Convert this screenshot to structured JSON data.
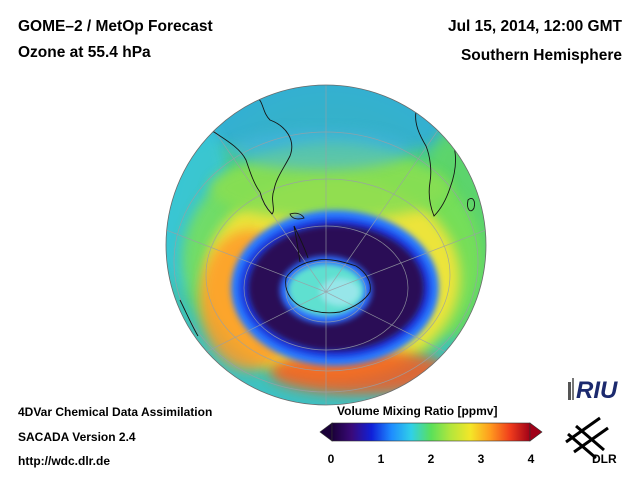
{
  "header": {
    "title_line1": "GOME–2 / MetOp Forecast",
    "title_line2": "Ozone at 55.4 hPa",
    "date": "Jul 15, 2014, 12:00 GMT",
    "region": "Southern Hemisphere"
  },
  "footer": {
    "line1": "4DVar Chemical Data Assimilation",
    "line2": "SACADA Version 2.4",
    "line3": "http://wdc.dlr.de"
  },
  "colorbar": {
    "title": "Volume Mixing Ratio [ppmv]",
    "ticks": [
      "0",
      "1",
      "2",
      "3",
      "4"
    ],
    "min": 0,
    "max": 4,
    "colors": [
      "#1a0038",
      "#3a0a7a",
      "#1020d8",
      "#1e8cff",
      "#30d0e8",
      "#5ae05a",
      "#b4e63c",
      "#f4e628",
      "#ff9a1e",
      "#f03c1c",
      "#a00018"
    ]
  },
  "logos": {
    "riu": "RIU",
    "dlr": "DLR"
  },
  "map": {
    "projection": "orthographic, south polar view",
    "palette": {
      "ocean_base": "#3cc8d0",
      "midlat_band": "#6ee05a",
      "collar_yellow": "#eae238",
      "collar_orange": "#ff8c28",
      "vortex_edge": "#2a6cff",
      "vortex_core": "#2a0a5a",
      "pole_center": "#66e6e0"
    }
  }
}
